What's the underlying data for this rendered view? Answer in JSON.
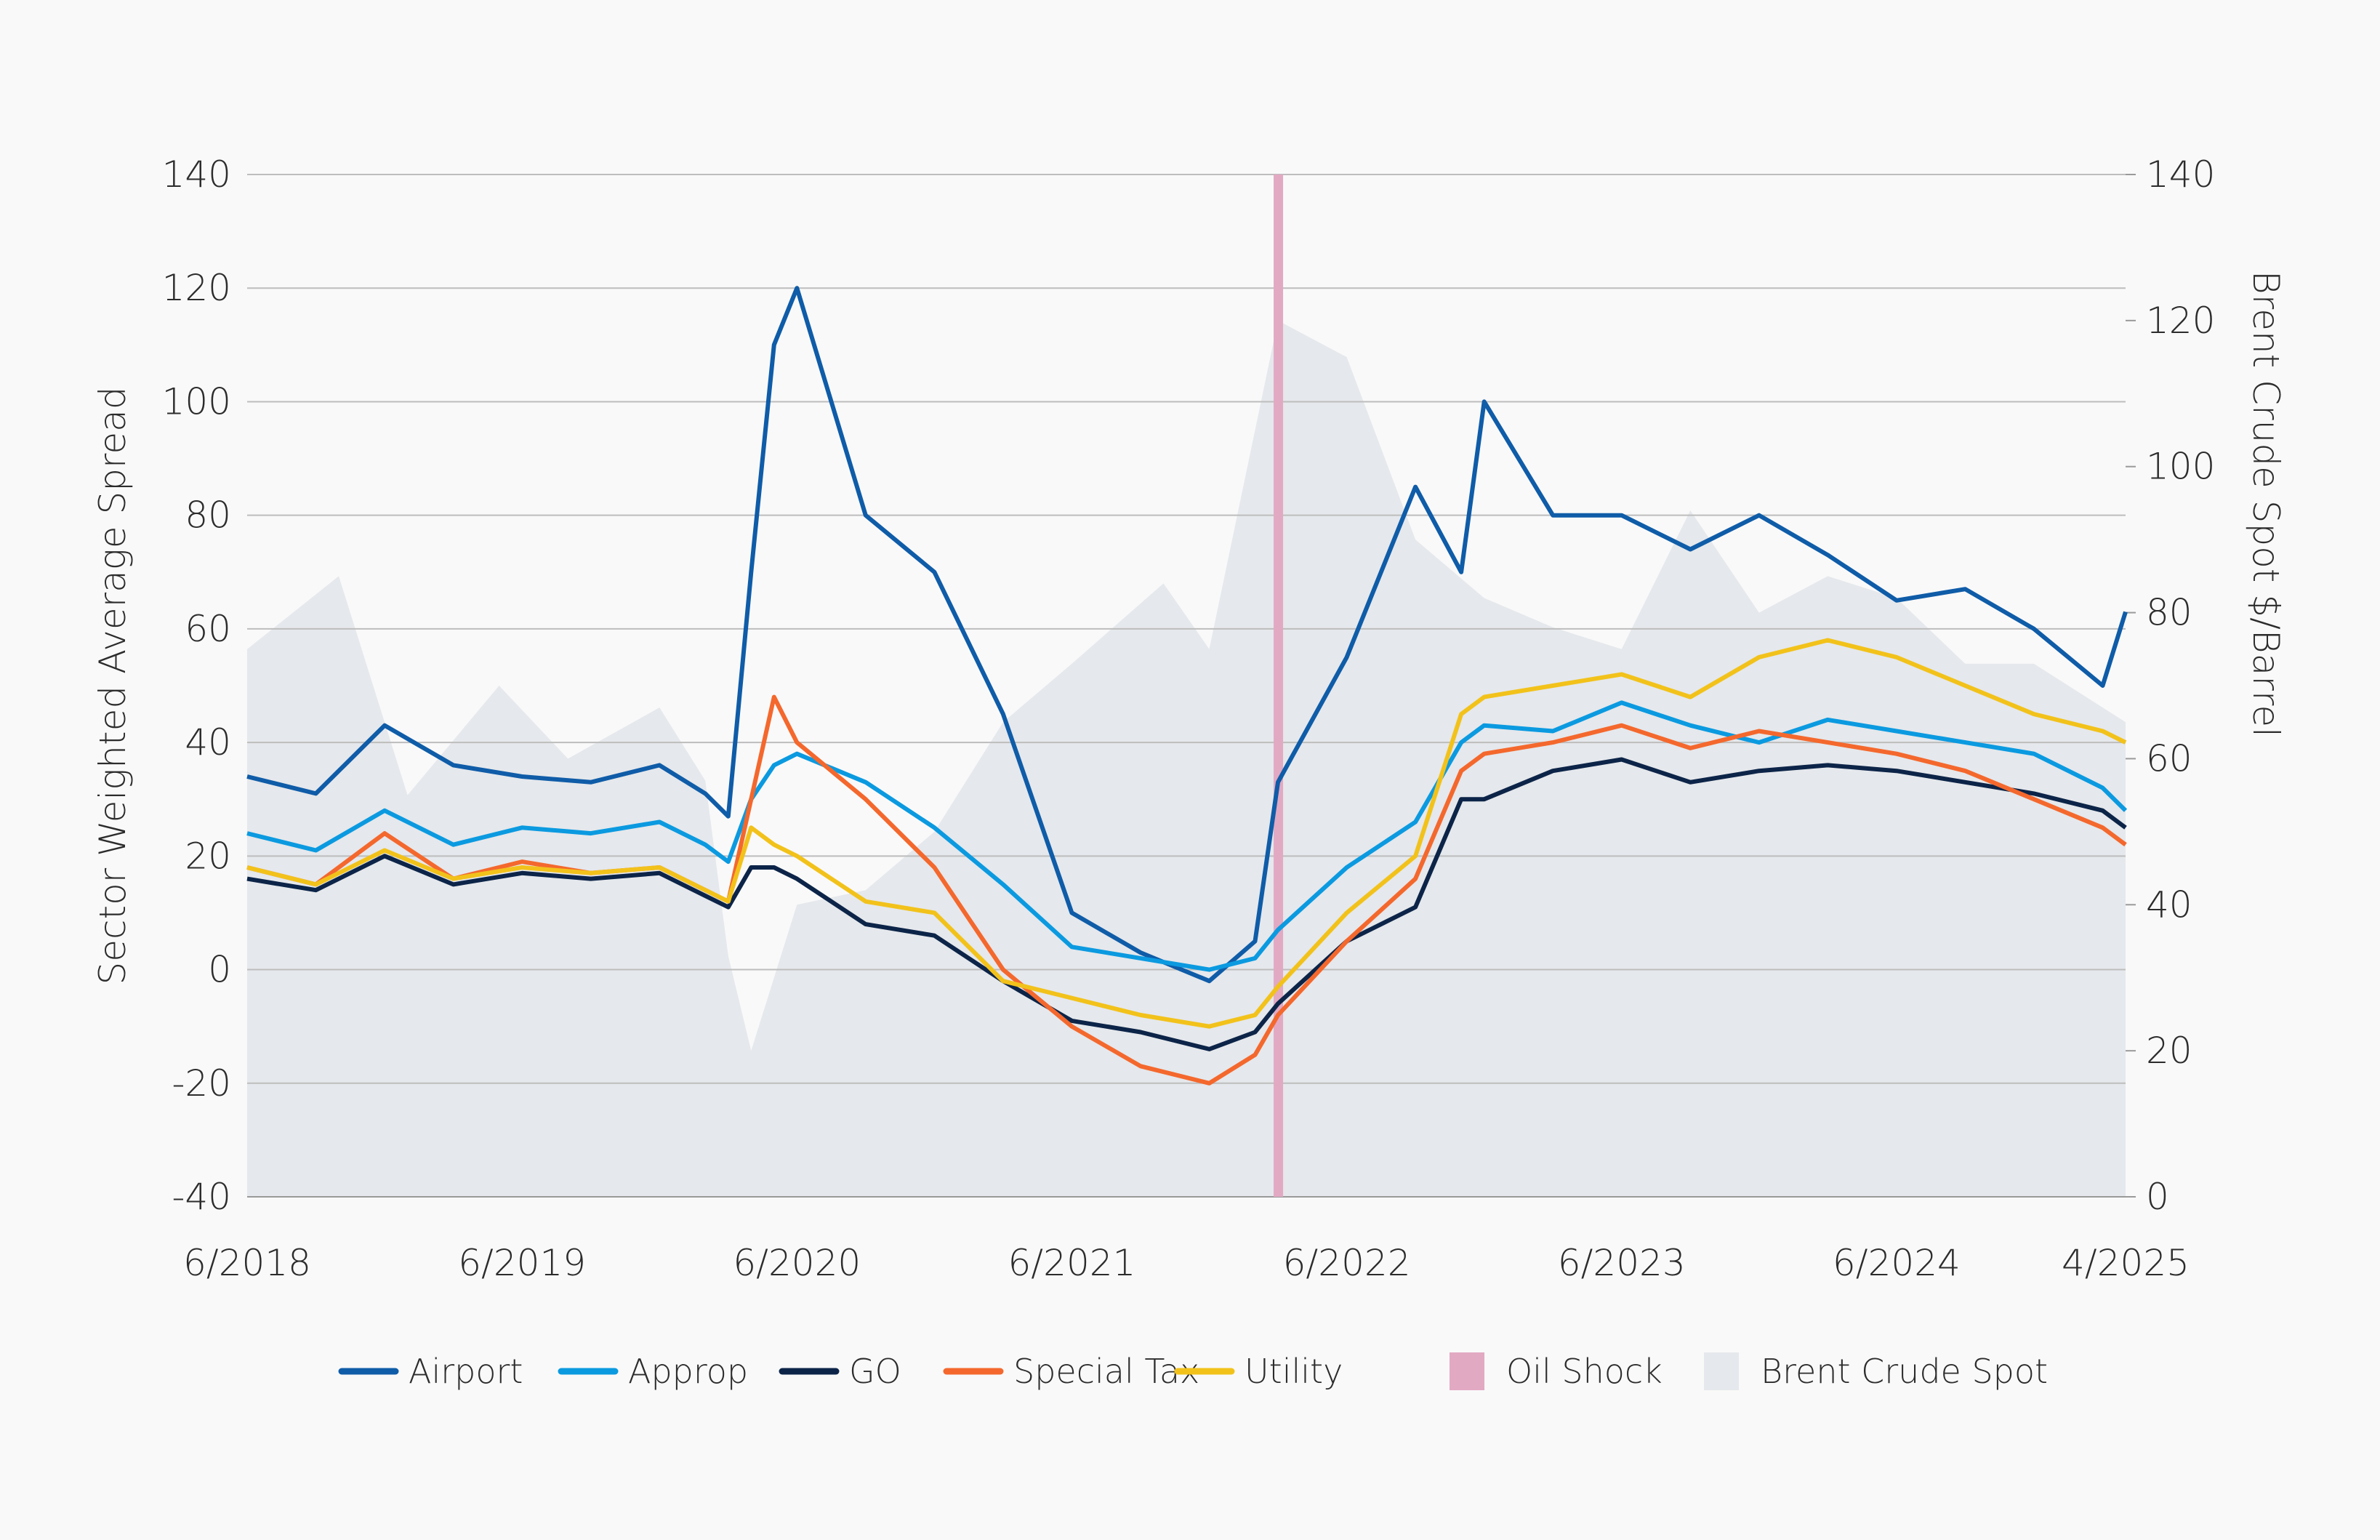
{
  "chart_data": {
    "type": "line",
    "title": "",
    "ylabel": "Sector Weighted Average Spread",
    "y2label": "Brent Crude Spot $/Barrel",
    "ylim": [
      -40,
      140
    ],
    "y2lim": [
      0,
      140
    ],
    "yticks": [
      -40,
      -20,
      0,
      20,
      40,
      60,
      80,
      100,
      120,
      140
    ],
    "y2ticks": [
      0,
      20,
      40,
      60,
      80,
      100,
      120,
      140
    ],
    "yticklabels": [
      "-40",
      "-20",
      "0",
      "20",
      "40",
      "60",
      "80",
      "100",
      "120",
      "140"
    ],
    "y2ticklabels": [
      "0",
      "20",
      "40",
      "60",
      "80",
      "100",
      "120",
      "140"
    ],
    "xlim": [
      "2018-06",
      "2025-04"
    ],
    "xticks": [
      "2018-06",
      "2019-06",
      "2020-06",
      "2021-06",
      "2022-06",
      "2023-06",
      "2024-06",
      "2025-04"
    ],
    "xticklabels": [
      "6/2018",
      "6/2019",
      "6/2020",
      "6/2021",
      "6/2022",
      "6/2023",
      "6/2024",
      "4/2025"
    ],
    "grid": "horizontal",
    "legend_position": "bottom",
    "x": [
      "2018-06",
      "2018-09",
      "2018-12",
      "2019-03",
      "2019-06",
      "2019-09",
      "2019-12",
      "2020-02",
      "2020-03",
      "2020-04",
      "2020-05",
      "2020-06",
      "2020-09",
      "2020-12",
      "2021-03",
      "2021-06",
      "2021-09",
      "2021-12",
      "2022-02",
      "2022-03",
      "2022-06",
      "2022-09",
      "2022-11",
      "2022-12",
      "2023-03",
      "2023-06",
      "2023-09",
      "2023-12",
      "2024-03",
      "2024-06",
      "2024-09",
      "2024-12",
      "2025-03",
      "2025-04"
    ],
    "series": [
      {
        "name": "Airport",
        "color": "#0f5ca8",
        "values": [
          34,
          31,
          43,
          36,
          34,
          33,
          36,
          31,
          27,
          70,
          110,
          120,
          80,
          70,
          45,
          10,
          3,
          -2,
          5,
          33,
          55,
          85,
          70,
          100,
          80,
          80,
          74,
          80,
          73,
          65,
          67,
          60,
          50,
          63
        ]
      },
      {
        "name": "Approp",
        "color": "#0b9ae0",
        "values": [
          24,
          21,
          28,
          22,
          25,
          24,
          26,
          22,
          19,
          30,
          36,
          38,
          33,
          25,
          15,
          4,
          2,
          0,
          2,
          7,
          18,
          26,
          40,
          43,
          42,
          47,
          43,
          40,
          44,
          42,
          40,
          38,
          32,
          28
        ]
      },
      {
        "name": "GO",
        "color": "#0c2448",
        "values": [
          16,
          14,
          20,
          15,
          17,
          16,
          17,
          13,
          11,
          18,
          18,
          16,
          8,
          6,
          -2,
          -9,
          -11,
          -14,
          -11,
          -6,
          5,
          11,
          30,
          30,
          35,
          37,
          33,
          35,
          36,
          35,
          33,
          31,
          28,
          25
        ]
      },
      {
        "name": "Special Tax",
        "color": "#f4682d",
        "values": [
          18,
          15,
          24,
          16,
          19,
          17,
          18,
          14,
          12,
          30,
          48,
          40,
          30,
          18,
          0,
          -10,
          -17,
          -20,
          -15,
          -8,
          5,
          16,
          35,
          38,
          40,
          43,
          39,
          42,
          40,
          38,
          35,
          30,
          25,
          22
        ]
      },
      {
        "name": "Utility",
        "color": "#f2c21b",
        "values": [
          18,
          15,
          21,
          16,
          18,
          17,
          18,
          14,
          12,
          25,
          22,
          20,
          12,
          10,
          -2,
          -5,
          -8,
          -10,
          -8,
          -3,
          10,
          20,
          45,
          48,
          50,
          52,
          48,
          55,
          58,
          55,
          50,
          45,
          42,
          40
        ]
      }
    ],
    "area_series": {
      "name": "Brent Crude Spot",
      "color": "#e5e8ec",
      "x": [
        "2018-06",
        "2018-10",
        "2019-01",
        "2019-05",
        "2019-08",
        "2019-12",
        "2020-02",
        "2020-03",
        "2020-04",
        "2020-06",
        "2020-09",
        "2020-12",
        "2021-03",
        "2021-06",
        "2021-10",
        "2021-12",
        "2022-03",
        "2022-06",
        "2022-09",
        "2022-12",
        "2023-03",
        "2023-06",
        "2023-09",
        "2023-12",
        "2024-03",
        "2024-06",
        "2024-09",
        "2024-12",
        "2025-04"
      ],
      "values": [
        75,
        85,
        55,
        70,
        60,
        67,
        57,
        33,
        20,
        40,
        42,
        50,
        65,
        73,
        84,
        75,
        120,
        115,
        90,
        82,
        78,
        75,
        94,
        80,
        85,
        82,
        73,
        73,
        65
      ]
    },
    "event": {
      "name": "Oil Shock",
      "date": "2022-03",
      "color": "#e2a9c3"
    }
  },
  "legend": [
    {
      "label": "Airport",
      "color": "#0f5ca8",
      "kind": "line"
    },
    {
      "label": "Approp",
      "color": "#0b9ae0",
      "kind": "line"
    },
    {
      "label": "GO",
      "color": "#0c2448",
      "kind": "line"
    },
    {
      "label": "Special Tax",
      "color": "#f4682d",
      "kind": "line"
    },
    {
      "label": "Utility",
      "color": "#f2c21b",
      "kind": "line"
    },
    {
      "label": "Oil Shock",
      "color": "#e2a9c3",
      "kind": "box"
    },
    {
      "label": "Brent Crude Spot",
      "color": "#e5e8ec",
      "kind": "box"
    }
  ]
}
